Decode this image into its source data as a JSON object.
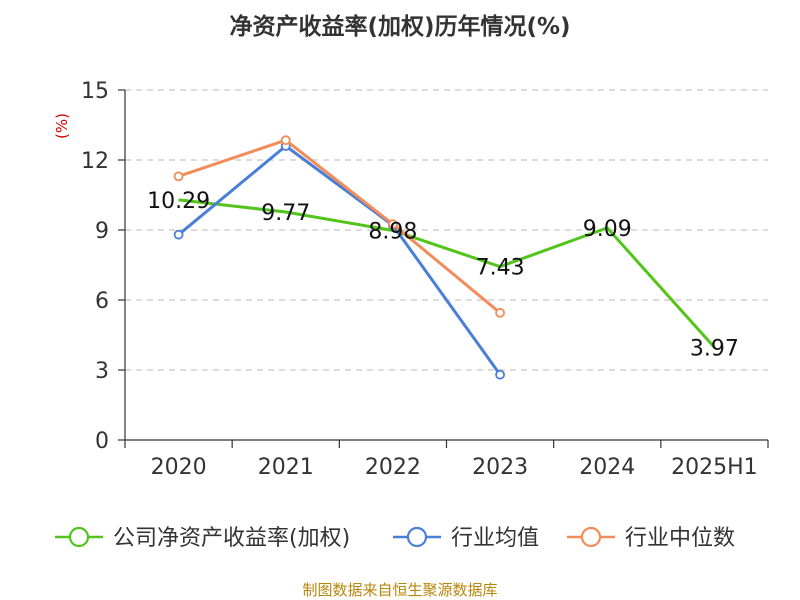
{
  "chart_data": {
    "type": "line",
    "title": "净资产收益率(加权)历年情况(%)",
    "ylabel": "(%)",
    "xlabel": "",
    "categories": [
      "2020",
      "2021",
      "2022",
      "2023",
      "2024",
      "2025H1"
    ],
    "ylim": [
      0,
      15
    ],
    "yticks": [
      0,
      3,
      6,
      9,
      12,
      15
    ],
    "grid": true,
    "legend_position": "bottom",
    "series": [
      {
        "name": "公司净资产收益率(加权)",
        "color": "#52c41a",
        "values": [
          10.29,
          9.77,
          8.98,
          7.43,
          9.09,
          3.97
        ],
        "labels": [
          "10.29",
          "9.77",
          "8.98",
          "7.43",
          "9.09",
          "3.97"
        ],
        "markers": false
      },
      {
        "name": "行业均值",
        "color": "#4a7fd6",
        "values": [
          8.8,
          12.6,
          9.2,
          2.8,
          null,
          null
        ],
        "markers": true
      },
      {
        "name": "行业中位数",
        "color": "#f28c5a",
        "values": [
          11.3,
          12.85,
          9.25,
          5.45,
          null,
          null
        ],
        "markers": true
      }
    ]
  },
  "source": "制图数据来自恒生聚源数据库"
}
